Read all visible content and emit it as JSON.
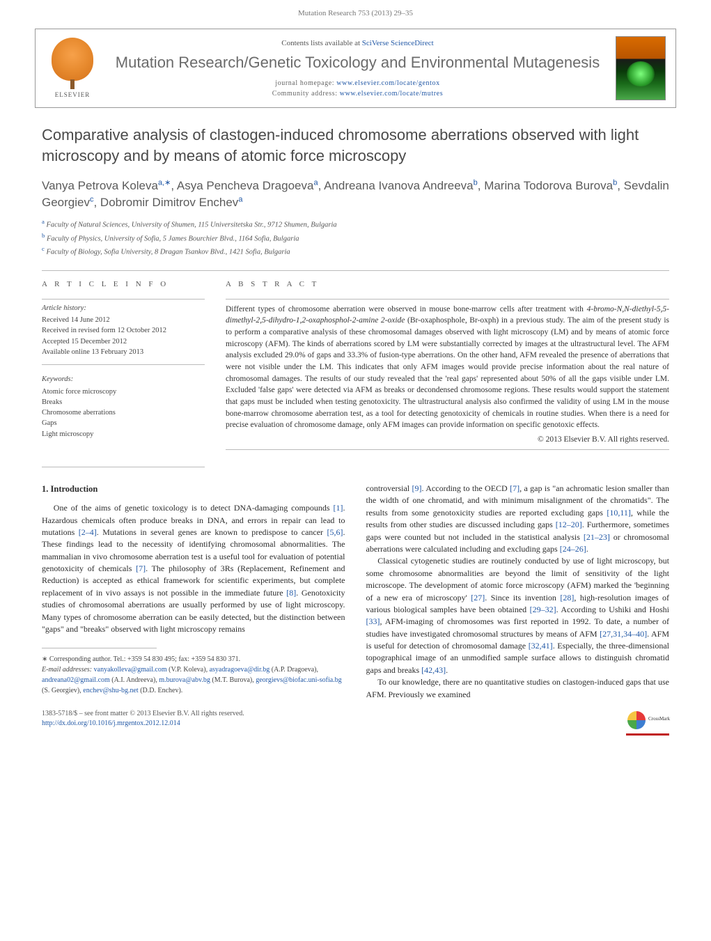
{
  "header": {
    "citation": "Mutation Research 753 (2013) 29–35"
  },
  "journalBox": {
    "publisherName": "ELSEVIER",
    "contentsLabel": "Contents lists available at",
    "contentsSource": "SciVerse ScienceDirect",
    "journalTitle": "Mutation Research/Genetic Toxicology and Environmental Mutagenesis",
    "homepageLabel": "journal homepage:",
    "homepageUrl": "www.elsevier.com/locate/gentox",
    "communityLabel": "Community address:",
    "communityUrl": "www.elsevier.com/locate/mutres"
  },
  "article": {
    "title": "Comparative analysis of clastogen-induced chromosome aberrations observed with light microscopy and by means of atomic force microscopy",
    "authorsHtml": "Vanya Petrova Koleva<sup>a,∗</sup>, Asya Pencheva Dragoeva<sup>a</sup>, Andreana Ivanova Andreeva<sup>b</sup>, Marina Todorova Burova<sup>b</sup>, Sevdalin Georgiev<sup>c</sup>, Dobromir Dimitrov Enchev<sup>a</sup>",
    "affiliations": [
      {
        "sup": "a",
        "text": "Faculty of Natural Sciences, University of Shumen, 115 Universitetska Str., 9712 Shumen, Bulgaria"
      },
      {
        "sup": "b",
        "text": "Faculty of Physics, University of Sofia, 5 James Bourchier Blvd., 1164 Sofia, Bulgaria"
      },
      {
        "sup": "c",
        "text": "Faculty of Biology, Sofia University, 8 Dragan Tsankov Blvd., 1421 Sofia, Bulgaria"
      }
    ]
  },
  "info": {
    "articleInfoLabel": "a r t i c l e   i n f o",
    "abstractLabel": "a b s t r a c t",
    "historyLabel": "Article history:",
    "history": [
      "Received 14 June 2012",
      "Received in revised form 12 October 2012",
      "Accepted 15 December 2012",
      "Available online 13 February 2013"
    ],
    "keywordsLabel": "Keywords:",
    "keywords": [
      "Atomic force microscopy",
      "Breaks",
      "Chromosome aberrations",
      "Gaps",
      "Light microscopy"
    ]
  },
  "abstract": {
    "html": "Different types of chromosome aberration were observed in mouse bone-marrow cells after treatment with <i>4-bromo-N,N-diethyl-5,5-dimethyl-2,5-dihydro-1,2-oxaphosphol-2-amine 2-oxide</i> (Br-oxaphosphole, Br-oxph) in a previous study. The aim of the present study is to perform a comparative analysis of these chromosomal damages observed with light microscopy (LM) and by means of atomic force microscopy (AFM). The kinds of aberrations scored by LM were substantially corrected by images at the ultrastructural level. The AFM analysis excluded 29.0% of gaps and 33.3% of fusion-type aberrations. On the other hand, AFM revealed the presence of aberrations that were not visible under the LM. This indicates that only AFM images would provide precise information about the real nature of chromosomal damages. The results of our study revealed that the 'real gaps' represented about 50% of all the gaps visible under LM. Excluded 'false gaps' were detected via AFM as breaks or decondensed chromosome regions. These results would support the statement that gaps must be included when testing genotoxicity. The ultrastructural analysis also confirmed the validity of using LM in the mouse bone-marrow chromosome aberration test, as a tool for detecting genotoxicity of chemicals in routine studies. When there is a need for precise evaluation of chromosome damage, only AFM images can provide information on specific genotoxic effects.",
    "copyright": "© 2013 Elsevier B.V. All rights reserved."
  },
  "body": {
    "introHeading": "1.  Introduction",
    "leftCol": {
      "p1": "One of the aims of genetic toxicology is to detect DNA-damaging compounds <a>[1]</a>. Hazardous chemicals often produce breaks in DNA, and errors in repair can lead to mutations <a>[2–4]</a>. Mutations in several genes are known to predispose to cancer <a>[5,6]</a>. These findings lead to the necessity of identifying chromosomal abnormalities. The mammalian in vivo chromosome aberration test is a useful tool for evaluation of potential genotoxicity of chemicals <a>[7]</a>. The philosophy of 3Rs (Replacement, Refinement and Reduction) is accepted as ethical framework for scientific experiments, but complete replacement of in vivo assays is not possible in the immediate future <a>[8]</a>. Genotoxicity studies of chromosomal aberrations are usually performed by use of light microscopy. Many types of chromosome aberration can be easily detected, but the distinction between \"gaps\" and \"breaks\" observed with light microscopy remains"
    },
    "rightCol": {
      "p1": "controversial <a>[9]</a>. According to the OECD <a>[7]</a>, a gap is \"an achromatic lesion smaller than the width of one chromatid, and with minimum misalignment of the chromatids\". The results from some genotoxicity studies are reported excluding gaps <a>[10,11]</a>, while the results from other studies are discussed including gaps <a>[12–20]</a>. Furthermore, sometimes gaps were counted but not included in the statistical analysis <a>[21–23]</a> or chromosomal aberrations were calculated including and excluding gaps <a>[24–26]</a>.",
      "p2": "Classical cytogenetic studies are routinely conducted by use of light microscopy, but some chromosome abnormalities are beyond the limit of sensitivity of the light microscope. The development of atomic force microscopy (AFM) marked the 'beginning of a new era of microscopy' <a>[27]</a>. Since its invention <a>[28]</a>, high-resolution images of various biological samples have been obtained <a>[29–32]</a>. According to Ushiki and Hoshi <a>[33]</a>, AFM-imaging of chromosomes was first reported in 1992. To date, a number of studies have investigated chromosomal structures by means of AFM <a>[27,31,34–40]</a>. AFM is useful for detection of chromosomal damage <a>[32,41]</a>. Especially, the three-dimensional topographical image of an unmodified sample surface allows to distinguish chromatid gaps and breaks <a>[42,43]</a>.",
      "p3": "To our knowledge, there are no quantitative studies on clastogen-induced gaps that use AFM. Previously we examined"
    }
  },
  "footnotes": {
    "corresponding": "∗ Corresponding author. Tel.: +359 54 830 495; fax: +359 54 830 371.",
    "emailsLabel": "E-mail addresses:",
    "emailsHtml": "<a>vanyakolleva@gmail.com</a> (V.P. Koleva), <a>asyadragoeva@dir.bg</a> (A.P. Dragoeva), <a>andreana02@gmail.com</a> (A.I. Andreeva), <a>m.burova@abv.bg</a> (M.T. Burova), <a>georgievs@biofac.uni-sofia.bg</a> (S. Georgiev), <a>enchev@shu-bg.net</a> (D.D. Enchev)."
  },
  "footer": {
    "issn": "1383-5718/$ – see front matter © 2013 Elsevier B.V. All rights reserved.",
    "doiLabel": "http://dx.doi.org/10.1016/j.mrgentox.2012.12.014"
  },
  "colors": {
    "link": "#2359a6",
    "text": "#333333",
    "muted": "#6b6b6b",
    "rule": "#bbbbbb"
  }
}
